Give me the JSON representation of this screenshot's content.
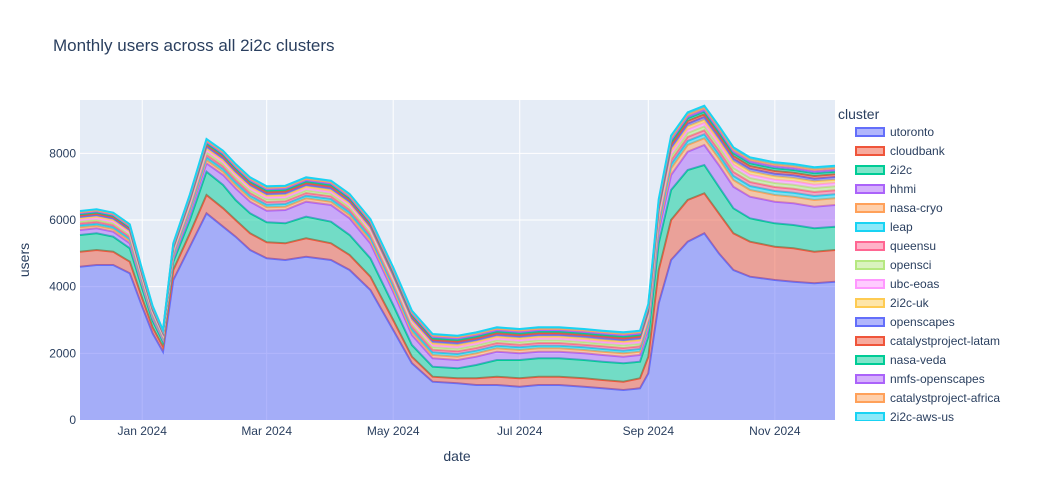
{
  "chart_data": {
    "type": "area",
    "title": "Monthly users across all 2i2c clusters",
    "xlabel": "date",
    "ylabel": "users",
    "xlim": [
      "2023-12-02",
      "2024-11-30"
    ],
    "ylim": [
      0,
      9600
    ],
    "x_ticks": [
      {
        "date": "2024-01-01",
        "label": "Jan 2024"
      },
      {
        "date": "2024-03-01",
        "label": "Mar 2024"
      },
      {
        "date": "2024-05-01",
        "label": "May 2024"
      },
      {
        "date": "2024-07-01",
        "label": "Jul 2024"
      },
      {
        "date": "2024-09-01",
        "label": "Sep 2024"
      },
      {
        "date": "2024-11-01",
        "label": "Nov 2024"
      }
    ],
    "y_ticks": [
      0,
      2000,
      4000,
      6000,
      8000
    ],
    "grid": true,
    "stacked": true,
    "legend": {
      "title": "cluster",
      "placement": "right"
    },
    "x": [
      "2023-12-02",
      "2023-12-10",
      "2023-12-18",
      "2023-12-26",
      "2024-01-01",
      "2024-01-06",
      "2024-01-11",
      "2024-01-16",
      "2024-01-24",
      "2024-02-01",
      "2024-02-09",
      "2024-02-15",
      "2024-02-22",
      "2024-03-01",
      "2024-03-10",
      "2024-03-20",
      "2024-04-01",
      "2024-04-10",
      "2024-04-20",
      "2024-05-01",
      "2024-05-10",
      "2024-05-20",
      "2024-06-01",
      "2024-06-10",
      "2024-06-20",
      "2024-07-01",
      "2024-07-10",
      "2024-07-20",
      "2024-08-01",
      "2024-08-10",
      "2024-08-20",
      "2024-08-28",
      "2024-09-01",
      "2024-09-06",
      "2024-09-12",
      "2024-09-20",
      "2024-09-28",
      "2024-10-05",
      "2024-10-12",
      "2024-10-20",
      "2024-11-01",
      "2024-11-10",
      "2024-11-20",
      "2024-11-30"
    ],
    "series": [
      {
        "name": "utoronto",
        "color": "#636efa",
        "values": [
          4600,
          4650,
          4650,
          4400,
          3400,
          2600,
          2050,
          4200,
          5200,
          6200,
          5800,
          5500,
          5100,
          4850,
          4800,
          4900,
          4800,
          4500,
          3900,
          2700,
          1700,
          1150,
          1100,
          1050,
          1050,
          1000,
          1050,
          1050,
          1000,
          950,
          900,
          950,
          1400,
          3500,
          4800,
          5350,
          5600,
          5000,
          4500,
          4300,
          4200,
          4150,
          4100,
          4150
        ]
      },
      {
        "name": "cloudbank",
        "color": "#EF553B",
        "values": [
          450,
          450,
          400,
          350,
          250,
          180,
          150,
          300,
          400,
          550,
          550,
          500,
          500,
          480,
          500,
          550,
          500,
          450,
          400,
          300,
          200,
          150,
          150,
          200,
          250,
          250,
          250,
          250,
          250,
          250,
          250,
          300,
          500,
          1000,
          1200,
          1250,
          1200,
          1200,
          1100,
          1050,
          1000,
          1000,
          950,
          950
        ]
      },
      {
        "name": "2i2c",
        "color": "#00cc96",
        "values": [
          500,
          500,
          450,
          400,
          300,
          200,
          150,
          250,
          400,
          700,
          700,
          600,
          600,
          600,
          600,
          650,
          650,
          600,
          550,
          450,
          350,
          300,
          300,
          400,
          500,
          550,
          550,
          550,
          550,
          550,
          550,
          500,
          600,
          800,
          900,
          900,
          850,
          800,
          750,
          700,
          700,
          700,
          700,
          700
        ]
      },
      {
        "name": "hhmi",
        "color": "#ab63fa",
        "values": [
          150,
          150,
          150,
          150,
          100,
          80,
          60,
          100,
          200,
          250,
          300,
          350,
          350,
          350,
          400,
          450,
          500,
          500,
          450,
          400,
          300,
          250,
          250,
          250,
          250,
          200,
          200,
          200,
          200,
          200,
          200,
          200,
          250,
          350,
          450,
          550,
          600,
          650,
          650,
          650,
          650,
          650,
          650,
          650
        ]
      },
      {
        "name": "nasa-cryo",
        "color": "#FFA15A",
        "values": [
          80,
          80,
          80,
          80,
          60,
          50,
          40,
          60,
          80,
          100,
          100,
          100,
          100,
          100,
          100,
          100,
          100,
          100,
          100,
          100,
          100,
          100,
          100,
          100,
          100,
          100,
          100,
          100,
          100,
          100,
          100,
          100,
          100,
          150,
          200,
          200,
          200,
          200,
          200,
          200,
          200,
          200,
          200,
          200
        ]
      },
      {
        "name": "leap",
        "color": "#19d3f3",
        "values": [
          60,
          60,
          60,
          60,
          50,
          40,
          30,
          50,
          60,
          80,
          80,
          80,
          80,
          80,
          80,
          80,
          80,
          80,
          80,
          80,
          80,
          80,
          80,
          80,
          80,
          80,
          80,
          80,
          80,
          80,
          80,
          80,
          80,
          100,
          120,
          120,
          120,
          120,
          120,
          120,
          120,
          120,
          120,
          120
        ]
      },
      {
        "name": "queensu",
        "color": "#FF6692",
        "values": [
          60,
          60,
          60,
          60,
          50,
          40,
          30,
          50,
          60,
          80,
          80,
          80,
          80,
          80,
          80,
          80,
          80,
          80,
          80,
          80,
          80,
          80,
          80,
          80,
          80,
          80,
          80,
          80,
          80,
          80,
          80,
          80,
          80,
          100,
          120,
          120,
          120,
          120,
          120,
          120,
          120,
          120,
          120,
          120
        ]
      },
      {
        "name": "opensci",
        "color": "#B6E880",
        "values": [
          60,
          60,
          60,
          60,
          50,
          40,
          30,
          50,
          60,
          80,
          80,
          80,
          80,
          80,
          80,
          80,
          80,
          80,
          80,
          80,
          80,
          80,
          80,
          80,
          80,
          80,
          80,
          80,
          80,
          80,
          80,
          80,
          80,
          100,
          120,
          120,
          120,
          120,
          120,
          120,
          120,
          120,
          120,
          120
        ]
      },
      {
        "name": "ubc-eoas",
        "color": "#FF97FF",
        "values": [
          50,
          50,
          50,
          50,
          40,
          30,
          25,
          40,
          50,
          60,
          60,
          60,
          60,
          60,
          60,
          60,
          60,
          60,
          60,
          60,
          60,
          60,
          60,
          60,
          60,
          60,
          60,
          60,
          60,
          60,
          60,
          60,
          60,
          80,
          100,
          100,
          100,
          100,
          100,
          100,
          100,
          100,
          100,
          100
        ]
      },
      {
        "name": "2i2c-uk",
        "color": "#FECB52",
        "values": [
          50,
          50,
          50,
          50,
          40,
          30,
          25,
          40,
          50,
          60,
          60,
          60,
          60,
          60,
          60,
          60,
          60,
          60,
          60,
          60,
          60,
          60,
          60,
          60,
          60,
          60,
          60,
          60,
          60,
          60,
          60,
          60,
          60,
          80,
          100,
          100,
          100,
          100,
          100,
          100,
          100,
          100,
          100,
          100
        ]
      },
      {
        "name": "openscapes",
        "color": "#636efa",
        "values": [
          40,
          40,
          40,
          40,
          30,
          25,
          20,
          30,
          40,
          50,
          50,
          50,
          50,
          50,
          50,
          50,
          50,
          50,
          50,
          50,
          50,
          50,
          50,
          50,
          50,
          50,
          50,
          50,
          50,
          50,
          50,
          50,
          50,
          70,
          80,
          80,
          80,
          80,
          80,
          80,
          80,
          80,
          80,
          80
        ]
      },
      {
        "name": "catalystproject-latam",
        "color": "#EF553B",
        "values": [
          40,
          40,
          40,
          40,
          30,
          25,
          20,
          30,
          40,
          50,
          50,
          50,
          50,
          50,
          50,
          50,
          50,
          50,
          50,
          50,
          50,
          50,
          50,
          50,
          50,
          50,
          50,
          50,
          50,
          50,
          50,
          50,
          50,
          70,
          80,
          80,
          80,
          80,
          80,
          80,
          80,
          80,
          80,
          80
        ]
      },
      {
        "name": "nasa-veda",
        "color": "#00cc96",
        "values": [
          40,
          40,
          40,
          40,
          30,
          25,
          20,
          30,
          40,
          50,
          50,
          50,
          50,
          50,
          50,
          50,
          50,
          50,
          50,
          50,
          50,
          50,
          50,
          50,
          50,
          50,
          50,
          50,
          50,
          50,
          50,
          50,
          50,
          70,
          80,
          80,
          80,
          80,
          80,
          80,
          80,
          80,
          80,
          80
        ]
      },
      {
        "name": "nmfs-openscapes",
        "color": "#ab63fa",
        "values": [
          30,
          30,
          30,
          30,
          25,
          20,
          15,
          25,
          30,
          40,
          40,
          40,
          40,
          40,
          40,
          40,
          40,
          40,
          40,
          40,
          40,
          40,
          40,
          40,
          40,
          40,
          40,
          40,
          40,
          40,
          40,
          40,
          40,
          50,
          60,
          60,
          60,
          60,
          60,
          60,
          60,
          60,
          60,
          60
        ]
      },
      {
        "name": "catalystproject-africa",
        "color": "#FFA15A",
        "values": [
          30,
          30,
          30,
          30,
          25,
          20,
          15,
          25,
          30,
          40,
          40,
          40,
          40,
          40,
          40,
          40,
          40,
          40,
          40,
          40,
          40,
          40,
          40,
          40,
          40,
          40,
          40,
          40,
          40,
          40,
          40,
          40,
          40,
          50,
          60,
          60,
          60,
          60,
          60,
          60,
          60,
          60,
          60,
          60
        ]
      },
      {
        "name": "2i2c-aws-us",
        "color": "#19d3f3",
        "values": [
          30,
          30,
          30,
          30,
          25,
          20,
          15,
          25,
          30,
          40,
          40,
          40,
          40,
          40,
          40,
          40,
          40,
          40,
          40,
          40,
          40,
          40,
          40,
          40,
          40,
          40,
          40,
          40,
          40,
          40,
          40,
          40,
          40,
          50,
          60,
          60,
          60,
          60,
          60,
          60,
          60,
          60,
          60,
          60
        ]
      }
    ]
  }
}
